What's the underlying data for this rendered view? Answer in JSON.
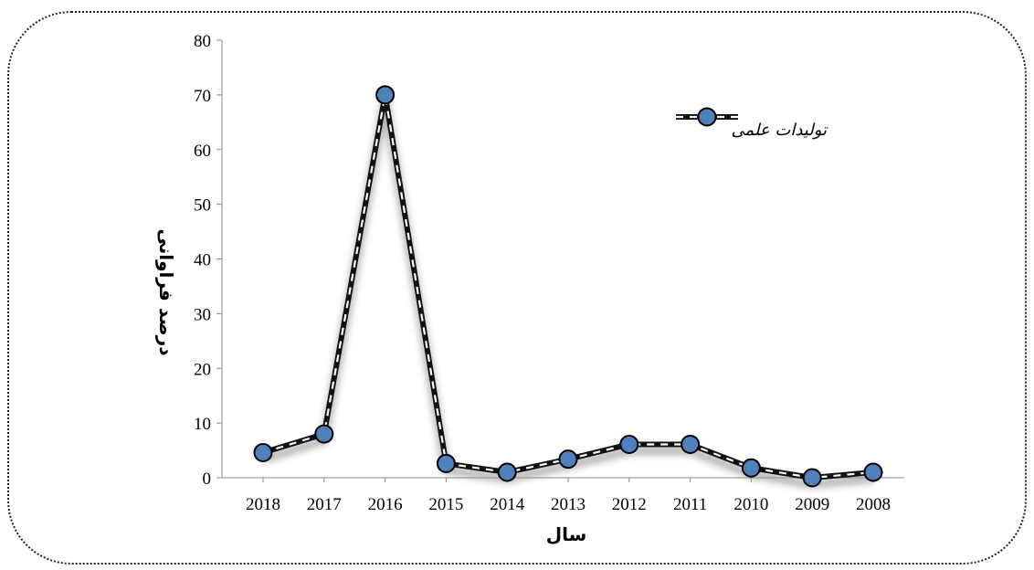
{
  "chart_data": {
    "type": "line",
    "xlabel": "سال",
    "ylabel": "درصد فراوانی",
    "categories": [
      "2018",
      "2017",
      "2016",
      "2015",
      "2014",
      "2013",
      "2012",
      "2011",
      "2010",
      "2009",
      "2008"
    ],
    "series": [
      {
        "name": "تولیدات علمی",
        "values": [
          4.6,
          8,
          70,
          2.6,
          1,
          3.4,
          6.1,
          6.1,
          1.8,
          0,
          1
        ]
      }
    ],
    "ylim": [
      0,
      80
    ],
    "yticks": [
      0,
      10,
      20,
      30,
      40,
      50,
      60,
      70,
      80
    ],
    "grid": false,
    "legend_position": "top-right",
    "colors": {
      "marker": "#4f81bd",
      "line": "#111111",
      "line_inner": "#ffffff",
      "shadow": "#9a9a9a"
    }
  }
}
